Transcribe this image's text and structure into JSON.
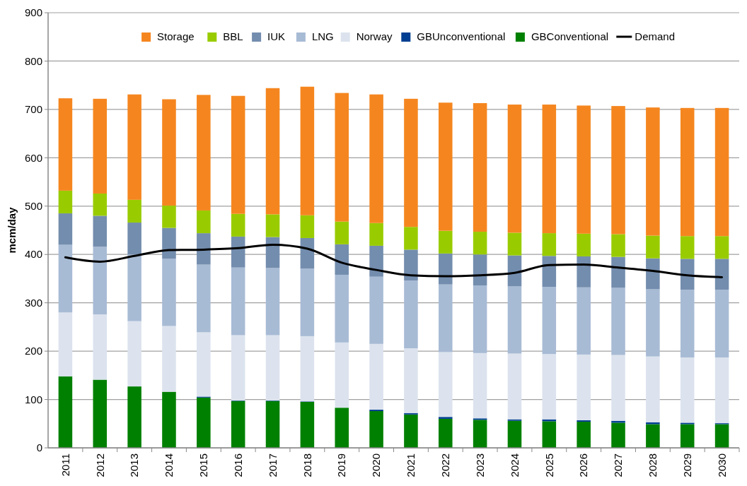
{
  "chart_data": {
    "type": "bar",
    "stacked": true,
    "ylabel": "mcm/day",
    "categories": [
      "2011",
      "2012",
      "2013",
      "2014",
      "2015",
      "2016",
      "2017",
      "2018",
      "2019",
      "2020",
      "2021",
      "2022",
      "2023",
      "2024",
      "2025",
      "2026",
      "2027",
      "2028",
      "2029",
      "2030"
    ],
    "ylim": [
      0,
      900
    ],
    "yticks": [
      0,
      100,
      200,
      300,
      400,
      500,
      600,
      700,
      800,
      900
    ],
    "grid": "y",
    "legend": "top",
    "series": [
      {
        "name": "GBConventional",
        "color": "#008000",
        "values": [
          148,
          141,
          127,
          116,
          104,
          97,
          97,
          95,
          83,
          76,
          69,
          60,
          58,
          56,
          55,
          54,
          52,
          49,
          49,
          49
        ]
      },
      {
        "name": "GBUnconventional",
        "color": "#003f91",
        "values": [
          0,
          0,
          0,
          0,
          2,
          1,
          1,
          1,
          null,
          3,
          3,
          4,
          3,
          3,
          4,
          3,
          4,
          4,
          3,
          2
        ]
      },
      {
        "name": "Norway",
        "color": "#dce3ee",
        "values": [
          132,
          135,
          135,
          136,
          133,
          135,
          135,
          135,
          135,
          136,
          134,
          134,
          135,
          136,
          135,
          136,
          136,
          136,
          135,
          136
        ]
      },
      {
        "name": "LNG",
        "color": "#a8bbd5",
        "values": [
          140,
          140,
          138,
          139,
          140,
          140,
          139,
          140,
          140,
          139,
          140,
          140,
          140,
          139,
          139,
          139,
          139,
          139,
          140,
          140
        ]
      },
      {
        "name": "IUK",
        "color": "#738dae",
        "values": [
          65,
          64,
          66,
          64,
          65,
          64,
          64,
          63,
          63,
          64,
          64,
          64,
          64,
          64,
          64,
          64,
          64,
          64,
          64,
          64
        ]
      },
      {
        "name": "BBL",
        "color": "#99cc00",
        "values": [
          47,
          46,
          47,
          46,
          47,
          47,
          47,
          47,
          47,
          47,
          47,
          47,
          47,
          47,
          47,
          47,
          47,
          47,
          47,
          47
        ]
      },
      {
        "name": "Storage",
        "color": "#f5861f",
        "values": [
          191,
          196,
          218,
          220,
          239,
          244,
          261,
          266,
          266,
          266,
          265,
          265,
          266,
          265,
          266,
          265,
          265,
          265,
          265,
          265
        ]
      },
      {
        "name": "Demand",
        "type": "line",
        "color": "#000000",
        "values": [
          394,
          385,
          397,
          409,
          410,
          413,
          420,
          412,
          383,
          368,
          357,
          355,
          357,
          362,
          378,
          379,
          373,
          366,
          357,
          353
        ]
      }
    ]
  }
}
